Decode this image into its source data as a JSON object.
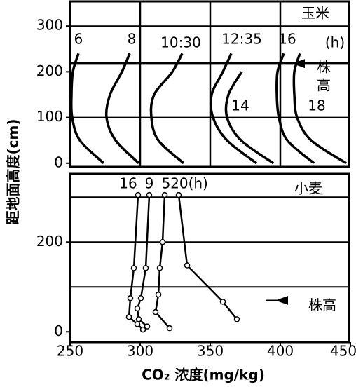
{
  "chart_data": [
    {
      "type": "line",
      "crop": "玉米",
      "y_label": "距地面高度(cm)",
      "time_unit": "(h)",
      "plant_height_label": "株高",
      "plant_height": 218,
      "xlim": [
        250,
        449
      ],
      "ylim": [
        -8,
        354
      ],
      "yticks": [
        0,
        100,
        200,
        300
      ],
      "xgrid": [
        300,
        350,
        400
      ],
      "ygrid": [
        100,
        300
      ],
      "series": [
        {
          "name": "6",
          "x": [
            256,
            252,
            251,
            251.5,
            257,
            274
          ],
          "y": [
            240,
            200,
            150,
            100,
            50,
            0
          ]
        },
        {
          "name": "8",
          "x": [
            292.5,
            287,
            278.5,
            276,
            282.5,
            299
          ],
          "y": [
            240,
            200,
            150,
            100,
            50,
            0
          ]
        },
        {
          "name": "10:30",
          "x": [
            330,
            323,
            310,
            308,
            313,
            331
          ],
          "y": [
            240,
            200,
            150,
            100,
            50,
            0
          ]
        },
        {
          "name": "12:35",
          "x": [
            365,
            359,
            351,
            352,
            362,
            383
          ],
          "y": [
            240,
            200,
            150,
            100,
            50,
            0
          ]
        },
        {
          "name": "14",
          "x": [
            null,
            372.5,
            363,
            362,
            372,
            395
          ],
          "y": [
            null,
            200,
            150,
            100,
            50,
            0
          ]
        },
        {
          "name": "16",
          "x": [
            402.5,
            398,
            397.5,
            399,
            405,
            424
          ],
          "y": [
            240,
            200,
            150,
            100,
            50,
            0
          ]
        },
        {
          "name": "18",
          "x": [
            414,
            410,
            410,
            412,
            422,
            447
          ],
          "y": [
            240,
            200,
            150,
            100,
            50,
            0
          ]
        }
      ]
    },
    {
      "type": "line",
      "crop": "小麦",
      "x_label": "CO₂ 浓度(mg/kg)",
      "plant_height_label": "株高",
      "plant_height": 70,
      "xlim": [
        250,
        449
      ],
      "ylim": [
        -23,
        352
      ],
      "xticks": [
        250,
        300,
        350,
        400,
        450
      ],
      "yticks": [
        0,
        200
      ],
      "ygrid": [
        100,
        200,
        300
      ],
      "series": [
        {
          "name": "16",
          "x": [
            298.5,
            295.5,
            293,
            292,
            298,
            302
          ],
          "y": [
            305,
            142,
            75,
            33,
            17,
            5
          ]
        },
        {
          "name": "9",
          "x": [
            306.5,
            304,
            300.5,
            298,
            299,
            305
          ],
          "y": [
            305,
            142,
            75,
            52,
            28,
            12
          ]
        },
        {
          "name": "5",
          "x": [
            317.5,
            316,
            314,
            313,
            311,
            321
          ],
          "y": [
            305,
            200,
            142,
            83,
            44,
            8
          ]
        },
        {
          "name": "20(h)",
          "x": [
            327.5,
            333.5,
            359,
            369
          ],
          "y": [
            305,
            148,
            67,
            28
          ]
        }
      ]
    }
  ]
}
